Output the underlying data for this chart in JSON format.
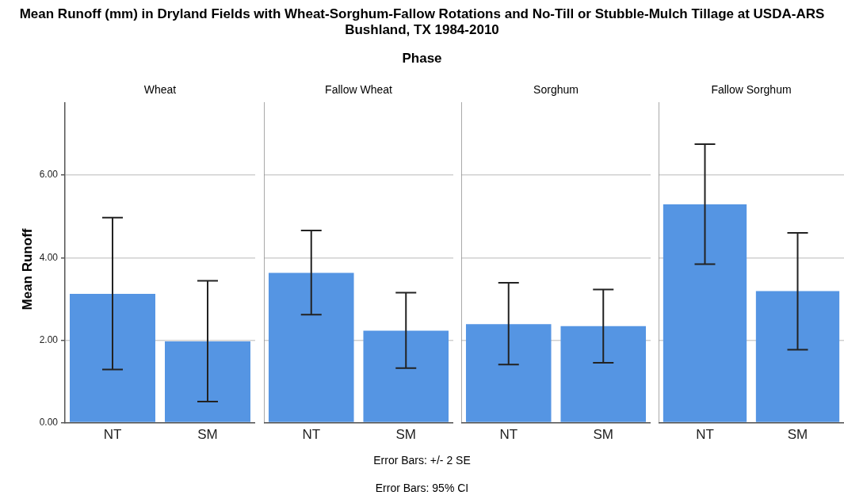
{
  "chart_data": [
    {
      "type": "bar",
      "title": "Mean Runoff (mm) in Dryland Fields with Wheat-Sorghum-Fallow Rotations and No-Till or Stubble-Mulch Tillage at USDA-ARS Bushland, TX 1984-2010",
      "x2label": "Phase",
      "subtitle": "Wheat",
      "ylabel": "Mean Runoff",
      "annotations": [
        "Error Bars: +/- 2 SE",
        "Error Bars: 95% CI"
      ],
      "categories": [
        "NT",
        "SM"
      ],
      "values": [
        3.12,
        1.97
      ],
      "errors": [
        [
          1.29,
          4.97
        ],
        [
          0.51,
          3.44
        ]
      ],
      "color": "#5595e3",
      "ylim": [
        0,
        7.75
      ],
      "yticks": [
        {
          "value": 0,
          "label": "0.00"
        },
        {
          "value": 2,
          "label": "2.00"
        },
        {
          "value": 4,
          "label": "4.00"
        },
        {
          "value": 6,
          "label": "6.00"
        }
      ],
      "grid": "y"
    },
    {
      "type": "bar",
      "subtitle": "Fallow Wheat",
      "categories": [
        "NT",
        "SM"
      ],
      "values": [
        3.63,
        2.23
      ],
      "errors": [
        [
          2.62,
          4.66
        ],
        [
          1.32,
          3.15
        ]
      ],
      "color": "#5595e3",
      "ylim": [
        0,
        7.75
      ],
      "yticks": [
        {
          "value": 0,
          "label": null
        },
        {
          "value": 2,
          "label": null
        },
        {
          "value": 4,
          "label": null
        },
        {
          "value": 6,
          "label": null
        }
      ],
      "grid": "y",
      "tick_labels": "x"
    },
    {
      "type": "bar",
      "subtitle": "Sorghum",
      "categories": [
        "NT",
        "SM"
      ],
      "values": [
        2.39,
        2.34
      ],
      "errors": [
        [
          1.41,
          3.39
        ],
        [
          1.45,
          3.23
        ]
      ],
      "color": "#5595e3",
      "ylim": [
        0,
        7.75
      ],
      "yticks": [
        {
          "value": 0,
          "label": null
        },
        {
          "value": 2,
          "label": null
        },
        {
          "value": 4,
          "label": null
        },
        {
          "value": 6,
          "label": null
        }
      ],
      "grid": "y",
      "tick_labels": "x"
    },
    {
      "type": "bar",
      "subtitle": "Fallow Sorghum",
      "categories": [
        "NT",
        "SM"
      ],
      "values": [
        5.29,
        3.19
      ],
      "errors": [
        [
          3.84,
          6.75
        ],
        [
          1.77,
          4.6
        ]
      ],
      "color": "#5595e3",
      "ylim": [
        0,
        7.75
      ],
      "yticks": [
        {
          "value": 0,
          "label": null
        },
        {
          "value": 2,
          "label": null
        },
        {
          "value": 4,
          "label": null
        },
        {
          "value": 6,
          "label": null
        }
      ],
      "grid": "y",
      "tick_labels": "x"
    }
  ]
}
